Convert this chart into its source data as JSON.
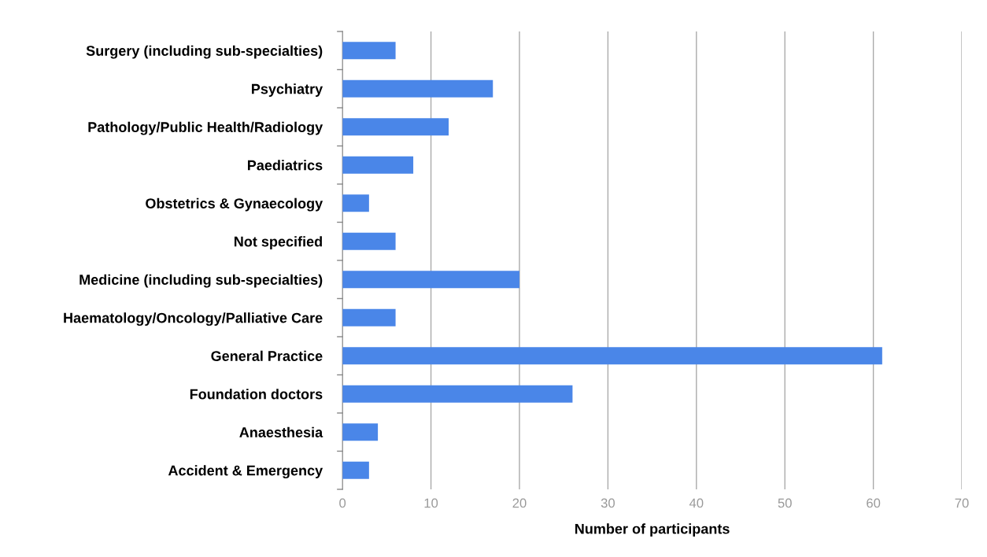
{
  "chart_data": {
    "type": "bar",
    "orientation": "horizontal",
    "xlabel": "Number of participants",
    "categories": [
      "Surgery (including sub-specialties)",
      "Psychiatry",
      "Pathology/Public Health/Radiology",
      "Paediatrics",
      "Obstetrics & Gynaecology",
      "Not specified",
      "Medicine (including sub-specialties)",
      "Haematology/Oncology/Palliative Care",
      "General Practice",
      "Foundation doctors",
      "Anaesthesia",
      "Accident & Emergency"
    ],
    "values": [
      6,
      17,
      12,
      8,
      3,
      6,
      20,
      6,
      61,
      26,
      4,
      3
    ],
    "color": "#4a86e8",
    "xlim": [
      0,
      70
    ],
    "xticks": [
      0,
      10,
      20,
      30,
      40,
      50,
      60,
      70
    ],
    "grid": "x"
  }
}
